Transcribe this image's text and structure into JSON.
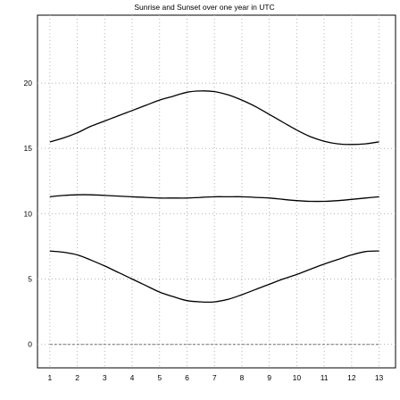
{
  "chart_data": {
    "type": "line",
    "title": "Sunrise and Sunset over one year in UTC",
    "xlabel": "",
    "ylabel": "",
    "xlim": [
      0.55,
      13.6
    ],
    "ylim": [
      -1.8,
      25.2
    ],
    "x_ticks": [
      1,
      2,
      3,
      4,
      5,
      6,
      7,
      8,
      9,
      10,
      11,
      12,
      13
    ],
    "y_ticks": [
      0,
      5,
      10,
      15,
      20
    ],
    "grid": true,
    "legend": "none",
    "x": [
      1,
      1.5,
      2,
      2.5,
      3,
      3.5,
      4,
      4.5,
      5,
      5.5,
      6,
      6.5,
      7,
      7.5,
      8,
      8.5,
      9,
      9.5,
      10,
      10.5,
      11,
      11.5,
      12,
      12.5,
      13
    ],
    "series": [
      {
        "values": [
          15.5,
          15.8,
          16.2,
          16.7,
          17.1,
          17.5,
          17.9,
          18.3,
          18.7,
          19.0,
          19.3,
          19.4,
          19.35,
          19.1,
          18.7,
          18.2,
          17.6,
          17.0,
          16.4,
          15.9,
          15.55,
          15.35,
          15.3,
          15.35,
          15.5
        ]
      },
      {
        "values": [
          11.3,
          11.4,
          11.45,
          11.45,
          11.4,
          11.35,
          11.3,
          11.25,
          11.2,
          11.2,
          11.2,
          11.25,
          11.3,
          11.3,
          11.3,
          11.25,
          11.2,
          11.1,
          11.0,
          10.95,
          10.95,
          11.0,
          11.1,
          11.2,
          11.3
        ]
      },
      {
        "values": [
          7.15,
          7.05,
          6.85,
          6.45,
          6.0,
          5.5,
          5.0,
          4.5,
          4.0,
          3.65,
          3.35,
          3.25,
          3.25,
          3.45,
          3.8,
          4.2,
          4.6,
          5.0,
          5.35,
          5.75,
          6.15,
          6.5,
          6.85,
          7.1,
          7.15
        ]
      },
      {
        "values": [
          0,
          0,
          0,
          0,
          0,
          0,
          0,
          0,
          0,
          0,
          0,
          0,
          0,
          0,
          0,
          0,
          0,
          0,
          0,
          0,
          0,
          0,
          0,
          0,
          0
        ]
      }
    ]
  }
}
